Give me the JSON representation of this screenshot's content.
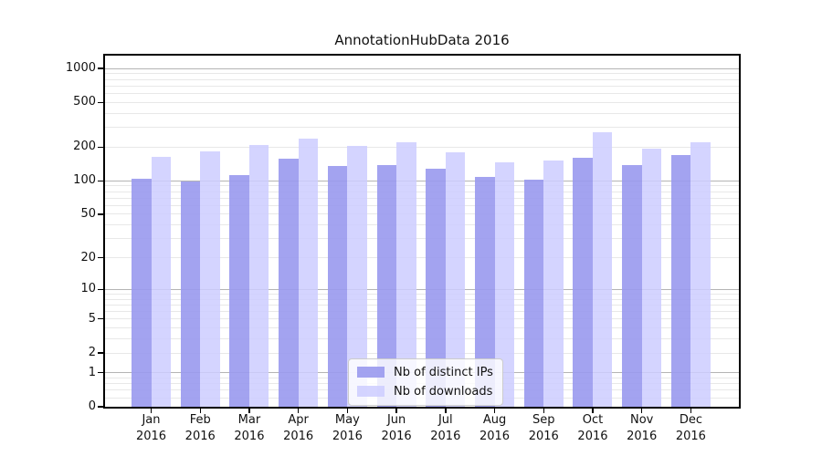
{
  "chart_data": {
    "type": "bar",
    "title": "AnnotationHubData 2016",
    "xlabel": "",
    "ylabel": "",
    "yscale": "log1p",
    "ylim": [
      0,
      1300
    ],
    "yticks": [
      0,
      1,
      2,
      5,
      10,
      20,
      50,
      100,
      200,
      500,
      1000
    ],
    "grid_major": [
      1,
      10,
      100,
      1000
    ],
    "grid_minor": [
      0.2,
      0.4,
      0.6,
      0.8,
      2,
      3,
      4,
      5,
      6,
      7,
      8,
      9,
      20,
      30,
      40,
      50,
      60,
      70,
      80,
      90,
      200,
      300,
      400,
      500,
      600,
      700,
      800,
      900
    ],
    "grid": true,
    "categories": [
      "Jan",
      "Feb",
      "Mar",
      "Apr",
      "May",
      "Jun",
      "Jul",
      "Aug",
      "Sep",
      "Oct",
      "Nov",
      "Dec"
    ],
    "year": "2016",
    "series": [
      {
        "name": "Nb of distinct IPs",
        "color": "#9999ee",
        "alpha": 0.9,
        "values": [
          105,
          99,
          112,
          157,
          135,
          137,
          128,
          108,
          102,
          160,
          137,
          170
        ]
      },
      {
        "name": "Nb of downloads",
        "color": "#ccccff",
        "alpha": 0.85,
        "values": [
          165,
          184,
          210,
          238,
          203,
          222,
          178,
          146,
          153,
          270,
          194,
          222
        ]
      }
    ],
    "legend_position": "lower center inside",
    "colors": {
      "grid_major": "#b4b4b4",
      "grid_minor": "#e8e8e8",
      "spine": "#000000",
      "text": "#111111"
    }
  }
}
